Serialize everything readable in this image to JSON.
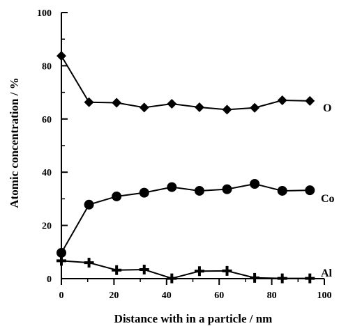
{
  "chart_data": {
    "type": "line",
    "title": "",
    "xlabel": "Distance with in a particle / nm",
    "ylabel": "Atomic concentration / %",
    "xlim": [
      0,
      100
    ],
    "ylim": [
      0,
      100
    ],
    "x_ticks": [
      0,
      20,
      40,
      60,
      80,
      100
    ],
    "y_ticks": [
      0,
      20,
      40,
      60,
      80,
      100
    ],
    "x_tick_labels": [
      "0",
      "20",
      "40",
      "60",
      "80",
      "100"
    ],
    "y_tick_labels": [
      "0",
      "20",
      "40",
      "60",
      "80",
      "100"
    ],
    "grid": false,
    "legend": "none (series labelled at right end of lines)",
    "series": [
      {
        "name": "O",
        "marker": "diamond",
        "color": "#000000",
        "x": [
          0,
          10.5,
          21,
          31.5,
          42,
          52.5,
          63,
          73.5,
          84,
          94.5
        ],
        "y": [
          83.7,
          66.3,
          66.1,
          64.3,
          65.7,
          64.4,
          63.5,
          64.2,
          67,
          66.8
        ]
      },
      {
        "name": "Co",
        "marker": "circle",
        "color": "#000000",
        "x": [
          0,
          10.5,
          21,
          31.5,
          42,
          52.5,
          63,
          73.5,
          84,
          94.5
        ],
        "y": [
          9.7,
          27.8,
          30.9,
          32.3,
          34.4,
          33,
          33.6,
          35.6,
          33,
          33.2
        ]
      },
      {
        "name": "Al",
        "marker": "plus",
        "color": "#000000",
        "x": [
          0,
          10.5,
          21,
          31.5,
          42,
          52.5,
          63,
          73.5,
          84,
          94.5
        ],
        "y": [
          6.7,
          6,
          3.2,
          3.4,
          0.1,
          2.8,
          2.9,
          0.3,
          0.1,
          0.1
        ]
      }
    ]
  }
}
